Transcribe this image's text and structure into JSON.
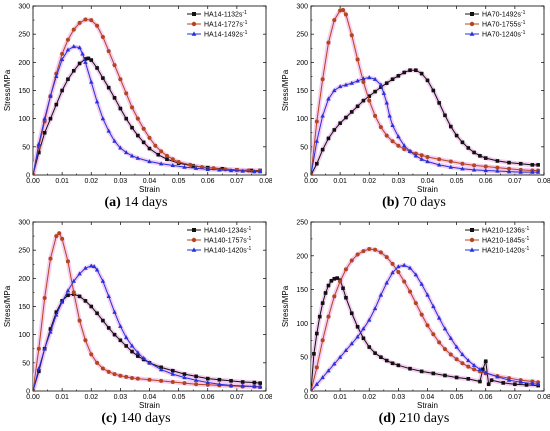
{
  "colors": {
    "black": "#111111",
    "red": "#b5441f",
    "blue": "#2233dd",
    "halo": "#f3c4ee"
  },
  "chart_data": [
    {
      "type": "line",
      "caption_letter": "(a)",
      "caption_text": " 14 days",
      "xlabel": "Strain",
      "ylabel": "Stress/MPa",
      "xlim": [
        0,
        0.08
      ],
      "ylim": [
        0,
        300
      ],
      "xticks": [
        0,
        0.01,
        0.02,
        0.03,
        0.04,
        0.05,
        0.06,
        0.07,
        0.08
      ],
      "xtick_labels": [
        "0.00",
        "0.01",
        "0.02",
        "0.03",
        "0.04",
        "0.05",
        "0.06",
        "0.07",
        "0.08"
      ],
      "yticks": [
        0,
        50,
        100,
        150,
        200,
        250,
        300
      ],
      "ytick_labels": [
        "0",
        "50",
        "100",
        "150",
        "200",
        "250",
        "300"
      ],
      "legend_position": "top-right",
      "series": [
        {
          "name": "HA14-1132s",
          "sup": "-1",
          "color": "black",
          "marker": "square",
          "x": [
            0,
            0.002,
            0.004,
            0.006,
            0.008,
            0.01,
            0.012,
            0.014,
            0.016,
            0.018,
            0.019,
            0.02,
            0.022,
            0.024,
            0.026,
            0.028,
            0.03,
            0.032,
            0.034,
            0.036,
            0.038,
            0.04,
            0.043,
            0.046,
            0.05,
            0.055,
            0.06,
            0.065,
            0.07,
            0.075,
            0.078
          ],
          "y": [
            0,
            40,
            75,
            100,
            125,
            150,
            170,
            185,
            198,
            206,
            207,
            204,
            190,
            172,
            155,
            137,
            118,
            100,
            84,
            70,
            58,
            47,
            36,
            28,
            21,
            16,
            13,
            11,
            9,
            8,
            8
          ]
        },
        {
          "name": "HA14-1727s",
          "sup": "-1",
          "color": "red",
          "marker": "circle",
          "x": [
            0,
            0.002,
            0.004,
            0.006,
            0.008,
            0.01,
            0.012,
            0.014,
            0.016,
            0.018,
            0.02,
            0.022,
            0.024,
            0.026,
            0.028,
            0.03,
            0.032,
            0.034,
            0.036,
            0.038,
            0.04,
            0.042,
            0.044,
            0.046,
            0.048,
            0.05,
            0.054,
            0.058,
            0.062,
            0.066,
            0.07,
            0.074,
            0.078
          ],
          "y": [
            0,
            50,
            95,
            140,
            180,
            215,
            240,
            258,
            270,
            276,
            275,
            265,
            245,
            220,
            195,
            170,
            145,
            120,
            100,
            82,
            66,
            52,
            42,
            34,
            28,
            23,
            18,
            14,
            12,
            10,
            9,
            8,
            7
          ]
        },
        {
          "name": "HA14-1492s",
          "sup": "-1",
          "color": "blue",
          "marker": "triangle",
          "x": [
            0,
            0.002,
            0.004,
            0.006,
            0.008,
            0.01,
            0.012,
            0.014,
            0.016,
            0.017,
            0.018,
            0.02,
            0.022,
            0.024,
            0.026,
            0.028,
            0.03,
            0.032,
            0.034,
            0.036,
            0.04,
            0.044,
            0.048,
            0.052,
            0.056,
            0.06,
            0.064,
            0.068,
            0.072,
            0.076,
            0.078
          ],
          "y": [
            0,
            55,
            100,
            140,
            175,
            205,
            222,
            228,
            226,
            215,
            200,
            165,
            130,
            100,
            78,
            60,
            48,
            40,
            34,
            30,
            24,
            20,
            17,
            14,
            12,
            10,
            9,
            8,
            7,
            6,
            6
          ]
        }
      ]
    },
    {
      "type": "line",
      "caption_letter": "(b)",
      "caption_text": " 70 days",
      "xlabel": "Strain",
      "ylabel": "Stress/MPa",
      "xlim": [
        0,
        0.08
      ],
      "ylim": [
        0,
        300
      ],
      "xticks": [
        0,
        0.01,
        0.02,
        0.03,
        0.04,
        0.05,
        0.06,
        0.07,
        0.08
      ],
      "xtick_labels": [
        "0.00",
        "0.01",
        "0.02",
        "0.03",
        "0.04",
        "0.05",
        "0.06",
        "0.07",
        "0.08"
      ],
      "yticks": [
        0,
        50,
        100,
        150,
        200,
        250,
        300
      ],
      "ytick_labels": [
        "0",
        "50",
        "100",
        "150",
        "200",
        "250",
        "300"
      ],
      "legend_position": "top-right",
      "series": [
        {
          "name": "HA70-1492s",
          "sup": "-1",
          "color": "black",
          "marker": "square",
          "x": [
            0,
            0.002,
            0.004,
            0.006,
            0.008,
            0.01,
            0.012,
            0.014,
            0.016,
            0.018,
            0.02,
            0.022,
            0.024,
            0.026,
            0.028,
            0.03,
            0.032,
            0.034,
            0.036,
            0.038,
            0.04,
            0.042,
            0.044,
            0.046,
            0.048,
            0.05,
            0.052,
            0.054,
            0.056,
            0.058,
            0.06,
            0.064,
            0.068,
            0.072,
            0.076,
            0.078
          ],
          "y": [
            0,
            20,
            45,
            65,
            80,
            92,
            102,
            112,
            122,
            132,
            140,
            148,
            156,
            163,
            170,
            176,
            182,
            186,
            186,
            180,
            168,
            150,
            128,
            106,
            86,
            70,
            58,
            48,
            40,
            34,
            30,
            25,
            22,
            20,
            18,
            18
          ]
        },
        {
          "name": "HA70-1755s",
          "sup": "-1",
          "color": "red",
          "marker": "circle",
          "x": [
            0,
            0.002,
            0.004,
            0.006,
            0.008,
            0.01,
            0.011,
            0.012,
            0.014,
            0.016,
            0.018,
            0.02,
            0.022,
            0.024,
            0.026,
            0.028,
            0.03,
            0.032,
            0.034,
            0.036,
            0.038,
            0.04,
            0.044,
            0.048,
            0.052,
            0.056,
            0.06,
            0.064,
            0.068,
            0.072,
            0.076,
            0.078
          ],
          "y": [
            0,
            95,
            170,
            235,
            275,
            292,
            293,
            285,
            248,
            205,
            165,
            132,
            105,
            85,
            70,
            60,
            52,
            46,
            42,
            38,
            35,
            32,
            28,
            24,
            20,
            17,
            15,
            13,
            11,
            9,
            8,
            8
          ]
        },
        {
          "name": "HA70-1240s",
          "sup": "-1",
          "color": "blue",
          "marker": "triangle",
          "x": [
            0,
            0.002,
            0.004,
            0.006,
            0.008,
            0.01,
            0.012,
            0.014,
            0.016,
            0.018,
            0.02,
            0.022,
            0.024,
            0.025,
            0.026,
            0.027,
            0.028,
            0.03,
            0.032,
            0.034,
            0.036,
            0.038,
            0.04,
            0.044,
            0.048,
            0.052,
            0.056,
            0.06,
            0.064,
            0.068,
            0.072,
            0.076,
            0.078
          ],
          "y": [
            0,
            60,
            105,
            135,
            150,
            157,
            160,
            163,
            167,
            171,
            173,
            170,
            160,
            145,
            128,
            105,
            88,
            68,
            52,
            42,
            34,
            28,
            24,
            18,
            14,
            11,
            9,
            8,
            7,
            6,
            5,
            5,
            5
          ]
        }
      ]
    },
    {
      "type": "line",
      "caption_letter": "(c)",
      "caption_text": " 140 days",
      "xlabel": "Strain",
      "ylabel": "Stress/MPa",
      "xlim": [
        0,
        0.08
      ],
      "ylim": [
        0,
        300
      ],
      "xticks": [
        0,
        0.01,
        0.02,
        0.03,
        0.04,
        0.05,
        0.06,
        0.07,
        0.08
      ],
      "xtick_labels": [
        "0.00",
        "0.01",
        "0.02",
        "0.03",
        "0.04",
        "0.05",
        "0.06",
        "0.07",
        "0.08"
      ],
      "yticks": [
        0,
        50,
        100,
        150,
        200,
        250,
        300
      ],
      "ytick_labels": [
        "0",
        "50",
        "100",
        "150",
        "200",
        "250",
        "300"
      ],
      "legend_position": "top-right",
      "series": [
        {
          "name": "HA140-1234s",
          "sup": "-1",
          "color": "black",
          "marker": "square",
          "x": [
            0,
            0.002,
            0.004,
            0.006,
            0.008,
            0.01,
            0.012,
            0.014,
            0.016,
            0.018,
            0.02,
            0.022,
            0.024,
            0.026,
            0.028,
            0.03,
            0.032,
            0.034,
            0.036,
            0.038,
            0.04,
            0.044,
            0.048,
            0.052,
            0.056,
            0.06,
            0.064,
            0.068,
            0.072,
            0.076,
            0.078
          ],
          "y": [
            0,
            35,
            75,
            110,
            140,
            160,
            170,
            172,
            168,
            160,
            150,
            138,
            125,
            112,
            100,
            90,
            80,
            70,
            62,
            56,
            50,
            42,
            36,
            30,
            26,
            22,
            20,
            18,
            16,
            15,
            14
          ]
        },
        {
          "name": "HA140-1757s",
          "sup": "-1",
          "color": "red",
          "marker": "circle",
          "x": [
            0,
            0.002,
            0.004,
            0.006,
            0.008,
            0.009,
            0.01,
            0.012,
            0.014,
            0.016,
            0.018,
            0.02,
            0.022,
            0.024,
            0.026,
            0.028,
            0.03,
            0.032,
            0.034,
            0.036,
            0.04,
            0.044,
            0.048,
            0.052,
            0.056,
            0.06,
            0.064,
            0.068,
            0.072,
            0.076,
            0.078
          ],
          "y": [
            0,
            75,
            165,
            235,
            275,
            280,
            270,
            230,
            175,
            125,
            90,
            65,
            50,
            40,
            34,
            30,
            27,
            25,
            23,
            22,
            20,
            18,
            16,
            14,
            12,
            11,
            10,
            9,
            8,
            8,
            7
          ]
        },
        {
          "name": "HA140-1420s",
          "sup": "-1",
          "color": "blue",
          "marker": "triangle",
          "x": [
            0,
            0.002,
            0.004,
            0.006,
            0.008,
            0.01,
            0.012,
            0.014,
            0.016,
            0.018,
            0.02,
            0.021,
            0.022,
            0.024,
            0.026,
            0.028,
            0.03,
            0.032,
            0.034,
            0.036,
            0.038,
            0.04,
            0.044,
            0.048,
            0.052,
            0.056,
            0.06,
            0.064,
            0.068,
            0.072,
            0.076,
            0.078
          ],
          "y": [
            0,
            40,
            75,
            105,
            135,
            158,
            178,
            195,
            208,
            218,
            222,
            221,
            215,
            195,
            168,
            140,
            115,
            95,
            80,
            68,
            58,
            50,
            38,
            30,
            24,
            19,
            15,
            12,
            10,
            9,
            8,
            7
          ]
        }
      ]
    },
    {
      "type": "line",
      "caption_letter": "(d)",
      "caption_text": " 210 days",
      "xlabel": "Strain",
      "ylabel": "Stress/MPa",
      "xlim": [
        0,
        0.08
      ],
      "ylim": [
        0,
        250
      ],
      "xticks": [
        0,
        0.01,
        0.02,
        0.03,
        0.04,
        0.05,
        0.06,
        0.07,
        0.08
      ],
      "xtick_labels": [
        "0.00",
        "0.01",
        "0.02",
        "0.03",
        "0.04",
        "0.05",
        "0.06",
        "0.07",
        "0.08"
      ],
      "yticks": [
        0,
        50,
        100,
        150,
        200,
        250
      ],
      "ytick_labels": [
        "0",
        "50",
        "100",
        "150",
        "200",
        "250"
      ],
      "legend_position": "top-right",
      "series": [
        {
          "name": "HA210-1236s",
          "sup": "-1",
          "color": "black",
          "marker": "square",
          "x": [
            0,
            0.001,
            0.002,
            0.003,
            0.004,
            0.005,
            0.006,
            0.007,
            0.008,
            0.009,
            0.01,
            0.011,
            0.012,
            0.014,
            0.016,
            0.018,
            0.02,
            0.022,
            0.024,
            0.026,
            0.028,
            0.03,
            0.034,
            0.038,
            0.042,
            0.046,
            0.05,
            0.054,
            0.058,
            0.059,
            0.06,
            0.061,
            0.062,
            0.066,
            0.07,
            0.074,
            0.078
          ],
          "y": [
            0,
            55,
            85,
            110,
            130,
            145,
            156,
            163,
            166,
            167,
            164,
            152,
            138,
            115,
            95,
            78,
            65,
            56,
            50,
            45,
            41,
            38,
            33,
            29,
            26,
            23,
            20,
            18,
            14,
            32,
            44,
            10,
            16,
            12,
            10,
            9,
            8
          ]
        },
        {
          "name": "HA210-1845s",
          "sup": "-1",
          "color": "red",
          "marker": "circle",
          "x": [
            0,
            0.002,
            0.004,
            0.006,
            0.008,
            0.01,
            0.012,
            0.014,
            0.016,
            0.018,
            0.02,
            0.022,
            0.024,
            0.026,
            0.028,
            0.03,
            0.032,
            0.034,
            0.036,
            0.038,
            0.04,
            0.042,
            0.044,
            0.046,
            0.048,
            0.05,
            0.052,
            0.054,
            0.056,
            0.058,
            0.06,
            0.064,
            0.068,
            0.072,
            0.076,
            0.078
          ],
          "y": [
            0,
            35,
            75,
            110,
            140,
            162,
            180,
            193,
            202,
            207,
            210,
            209,
            205,
            198,
            188,
            176,
            162,
            147,
            130,
            113,
            97,
            84,
            72,
            62,
            54,
            47,
            41,
            36,
            32,
            29,
            26,
            22,
            19,
            16,
            14,
            13
          ]
        },
        {
          "name": "HA210-1420s",
          "sup": "-1",
          "color": "blue",
          "marker": "triangle",
          "x": [
            0,
            0.002,
            0.004,
            0.006,
            0.008,
            0.01,
            0.012,
            0.014,
            0.016,
            0.018,
            0.02,
            0.022,
            0.024,
            0.026,
            0.028,
            0.03,
            0.032,
            0.034,
            0.036,
            0.038,
            0.04,
            0.042,
            0.044,
            0.046,
            0.048,
            0.05,
            0.052,
            0.054,
            0.056,
            0.058,
            0.06,
            0.064,
            0.068,
            0.072,
            0.076,
            0.078
          ],
          "y": [
            0,
            10,
            20,
            30,
            40,
            50,
            60,
            70,
            80,
            92,
            105,
            122,
            142,
            160,
            175,
            184,
            186,
            182,
            172,
            158,
            142,
            125,
            108,
            92,
            78,
            65,
            54,
            45,
            38,
            32,
            27,
            21,
            16,
            13,
            11,
            10
          ]
        }
      ]
    }
  ]
}
